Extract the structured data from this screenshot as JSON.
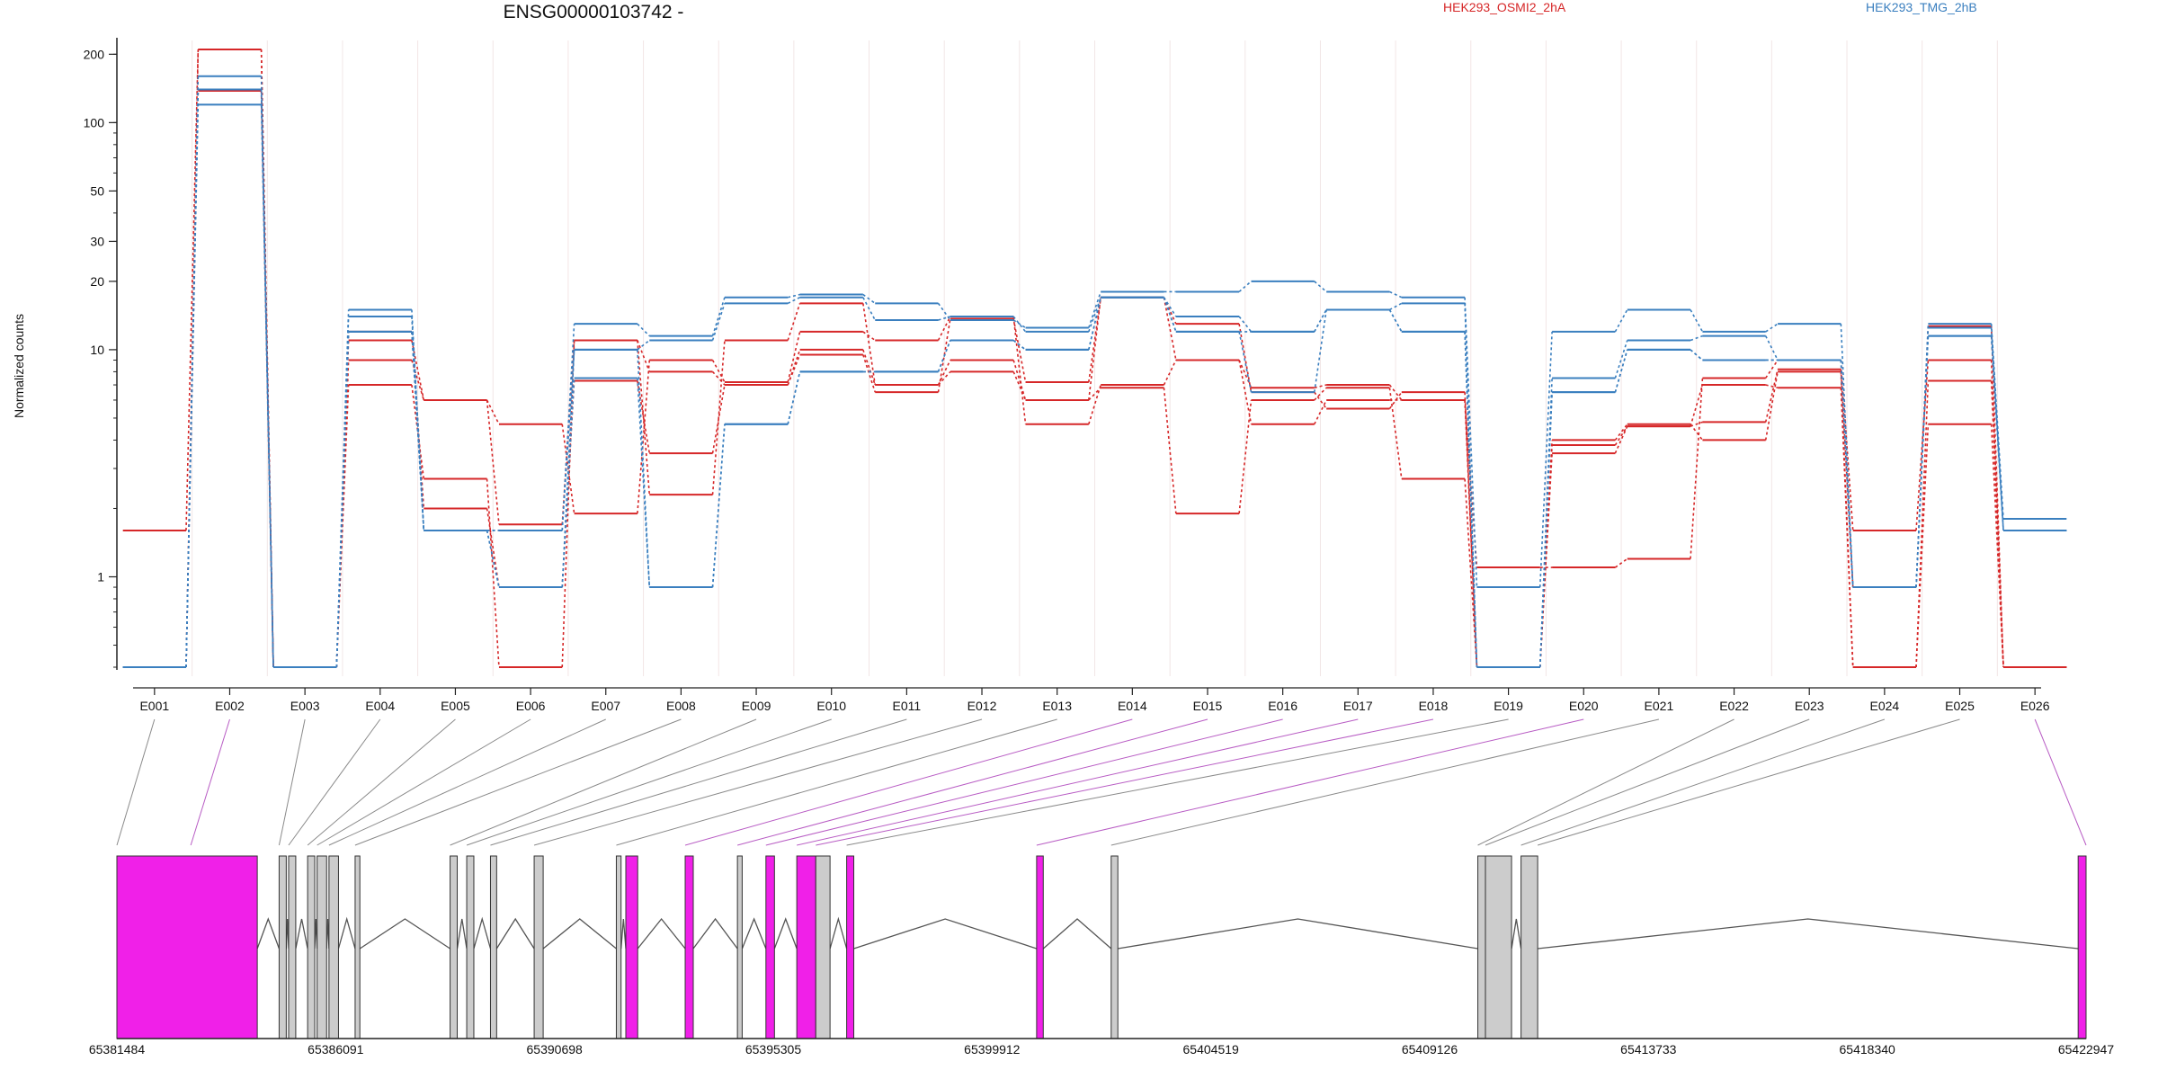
{
  "chart_data": {
    "type": "line",
    "title": "ENSG00000103742 -",
    "xlabel": "",
    "ylabel": "Normalized counts",
    "yscale": "log",
    "ylim": [
      0.4,
      230
    ],
    "yticks": [
      1,
      10,
      20,
      30,
      50,
      100,
      200
    ],
    "categories": [
      "E001",
      "E002",
      "E003",
      "E004",
      "E005",
      "E006",
      "E007",
      "E008",
      "E009",
      "E010",
      "E011",
      "E012",
      "E013",
      "E014",
      "E015",
      "E016",
      "E017",
      "E018",
      "E019",
      "E020",
      "E021",
      "E022",
      "E023",
      "E024",
      "E025",
      "E026"
    ],
    "legend": [
      {
        "label": "HEK293_OSMI2_2hA",
        "color": "#d62728"
      },
      {
        "label": "HEK293_TMG_2hB",
        "color": "#3a7fbf"
      }
    ],
    "series": [
      {
        "group": "HEK293_OSMI2_2hA",
        "color": "#d62728",
        "values": [
          1.6,
          210,
          0.4,
          11,
          6,
          1.7,
          11,
          2.3,
          11,
          16,
          7,
          9,
          6,
          17,
          9,
          6.8,
          7,
          6,
          1.1,
          1.1,
          1.2,
          7.5,
          9,
          1.6,
          9,
          0.4
        ]
      },
      {
        "group": "HEK293_OSMI2_2hA",
        "color": "#d62728",
        "values": [
          0.4,
          210,
          0.4,
          9,
          6,
          4.7,
          1.9,
          9,
          7.2,
          12,
          11,
          14,
          4.7,
          7,
          9,
          4.7,
          6,
          6,
          0.4,
          4,
          4.7,
          4,
          8,
          0.4,
          4.7,
          0.4
        ]
      },
      {
        "group": "HEK293_OSMI2_2hA",
        "color": "#d62728",
        "values": [
          0.4,
          138,
          0.4,
          7,
          2.7,
          0.4,
          11,
          8,
          7,
          10,
          7,
          8,
          6,
          6.8,
          1.9,
          6,
          6.8,
          2.7,
          0.4,
          3.5,
          4.6,
          7,
          6.8,
          0.4,
          7.3,
          0.4
        ]
      },
      {
        "group": "HEK293_OSMI2_2hA",
        "color": "#d62728",
        "values": [
          0.4,
          140,
          0.4,
          12,
          2,
          0.9,
          7.3,
          3.5,
          7,
          9.5,
          6.5,
          13.7,
          7.2,
          17,
          13,
          6.5,
          5.5,
          6.5,
          0.4,
          3.8,
          4.6,
          4.8,
          8.2,
          0.9,
          12.7,
          0.4
        ]
      },
      {
        "group": "HEK293_TMG_2hB",
        "color": "#3a7fbf",
        "values": [
          0.4,
          160,
          0.4,
          15,
          1.6,
          1.6,
          13,
          11.5,
          17,
          17.5,
          16,
          13.5,
          12.5,
          18,
          18,
          20,
          18,
          17,
          0.9,
          12,
          15,
          12,
          13,
          0.9,
          13,
          1.8
        ]
      },
      {
        "group": "HEK293_TMG_2hB",
        "color": "#3a7fbf",
        "values": [
          0.4,
          140,
          0.4,
          14,
          1.6,
          1.6,
          10,
          11,
          16,
          17,
          13.5,
          14,
          12,
          17,
          14,
          12,
          15,
          16,
          0.4,
          7.5,
          11,
          11.5,
          9,
          0.9,
          12.5,
          1.6
        ]
      },
      {
        "group": "HEK293_TMG_2hB",
        "color": "#3a7fbf",
        "values": [
          0.4,
          120,
          0.4,
          12,
          1.6,
          0.9,
          10,
          0.9,
          4.7,
          8,
          8,
          11,
          10,
          17,
          12,
          12,
          15,
          12,
          0.4,
          6.5,
          10,
          9,
          9,
          0.9,
          11.5,
          1.6
        ]
      },
      {
        "group": "HEK293_TMG_2hB",
        "color": "#3a7fbf",
        "values": [
          0.4,
          140,
          0.4,
          12,
          1.6,
          0.9,
          7.5,
          0.9,
          4.7,
          8,
          8,
          11,
          10,
          17,
          12,
          6.5,
          15,
          12,
          0.4,
          6.5,
          10,
          9,
          9,
          0.9,
          11.5,
          1.6
        ]
      }
    ],
    "gene_model": {
      "coord_ticks": [
        "65381484",
        "65386091",
        "65390698",
        "65395305",
        "65399912",
        "65404519",
        "65409126",
        "65413733",
        "65418340",
        "65422947"
      ],
      "genomic_range": [
        65381484,
        65422947
      ],
      "highlight_color": "#f020e8",
      "exon_color": "#cccccc",
      "exons": [
        {
          "start": 65381484,
          "end": 65384440,
          "highlight": true,
          "label": "E002"
        },
        {
          "start": 65384900,
          "end": 65385050,
          "highlight": false
        },
        {
          "start": 65385100,
          "end": 65385250,
          "highlight": false
        },
        {
          "start": 65385500,
          "end": 65385650,
          "highlight": false
        },
        {
          "start": 65385700,
          "end": 65385900,
          "highlight": false
        },
        {
          "start": 65385950,
          "end": 65386150,
          "highlight": false
        },
        {
          "start": 65386500,
          "end": 65386600,
          "highlight": false
        },
        {
          "start": 65388500,
          "end": 65388650,
          "highlight": false
        },
        {
          "start": 65388850,
          "end": 65389000,
          "highlight": false
        },
        {
          "start": 65389350,
          "end": 65389480,
          "highlight": false
        },
        {
          "start": 65390270,
          "end": 65390460,
          "highlight": false
        },
        {
          "start": 65392000,
          "end": 65392100,
          "highlight": false
        },
        {
          "start": 65392200,
          "end": 65392450,
          "highlight": true
        },
        {
          "start": 65393450,
          "end": 65393620,
          "highlight": true
        },
        {
          "start": 65394550,
          "end": 65394650,
          "highlight": false
        },
        {
          "start": 65395150,
          "end": 65395330,
          "highlight": true
        },
        {
          "start": 65395800,
          "end": 65396200,
          "highlight": true
        },
        {
          "start": 65396200,
          "end": 65396500,
          "highlight": false
        },
        {
          "start": 65396850,
          "end": 65397000,
          "highlight": true
        },
        {
          "start": 65400850,
          "end": 65400990,
          "highlight": true
        },
        {
          "start": 65402420,
          "end": 65402560,
          "highlight": false
        },
        {
          "start": 65410140,
          "end": 65410300,
          "highlight": false
        },
        {
          "start": 65410300,
          "end": 65410850,
          "highlight": false
        },
        {
          "start": 65411050,
          "end": 65411400,
          "highlight": false
        },
        {
          "start": 65422780,
          "end": 65422947,
          "highlight": true
        }
      ],
      "connector_sources": [
        65381484,
        65383040,
        65384900,
        65385100,
        65385500,
        65385700,
        65385950,
        65386500,
        65388500,
        65388850,
        65389350,
        65390270,
        65392000,
        65393450,
        65394550,
        65395150,
        65395800,
        65396200,
        65396850,
        65400850,
        65402420,
        65410140,
        65410300,
        65411050,
        65411400,
        65422947
      ],
      "connector_highlight": [
        false,
        true,
        false,
        false,
        false,
        false,
        false,
        false,
        false,
        false,
        false,
        false,
        false,
        true,
        true,
        true,
        true,
        true,
        false,
        true,
        false,
        false,
        false,
        false,
        false,
        true
      ]
    }
  }
}
